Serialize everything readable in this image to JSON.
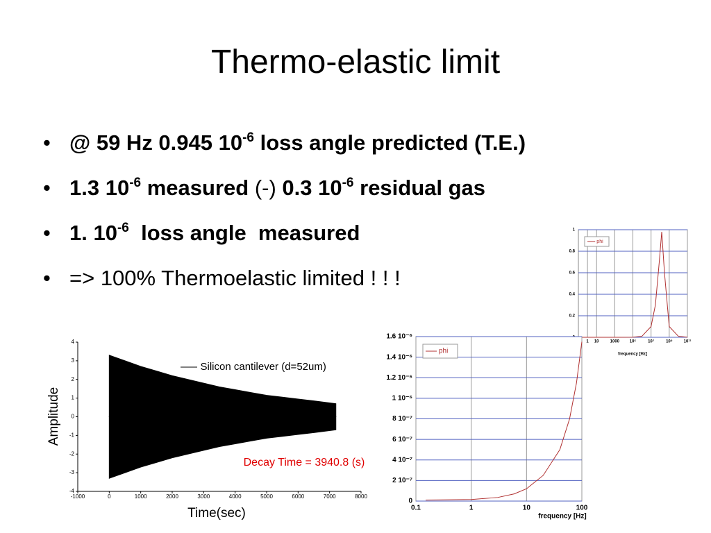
{
  "title": "Thermo-elastic limit",
  "bullets": [
    [
      {
        "text": "@ 59 Hz 0.945 10",
        "bold": true
      },
      {
        "text": "-6",
        "bold": true,
        "sup": true
      },
      {
        "text": " loss angle predicted (T.E.)",
        "bold": true
      }
    ],
    [
      {
        "text": "1.3 10",
        "bold": true
      },
      {
        "text": "-6",
        "bold": true,
        "sup": true
      },
      {
        "text": " measured ",
        "bold": true
      },
      {
        "text": "(-) ",
        "bold": false
      },
      {
        "text": "0.3 10",
        "bold": true
      },
      {
        "text": "-6",
        "bold": true,
        "sup": true
      },
      {
        "text": " residual gas",
        "bold": true
      }
    ],
    [
      {
        "text": "1. 10",
        "bold": true
      },
      {
        "text": "-6",
        "bold": true,
        "sup": true
      },
      {
        "text": "  loss angle  measured",
        "bold": true
      }
    ],
    [
      {
        "text": "=> 100% Thermoelastic limited ! ! !",
        "bold": false
      }
    ]
  ],
  "chart_data": [
    {
      "type": "area",
      "xlabel": "Time(sec)",
      "ylabel": "Amplitude",
      "x": [
        0,
        500,
        1000,
        1500,
        2000,
        2500,
        3000,
        3500,
        4000,
        4500,
        5000,
        5500,
        6000,
        6500,
        7200
      ],
      "series": [
        {
          "name": "Silicon cantilever (d=52um)",
          "color": "#000000",
          "values": [
            3.3,
            3.0,
            2.7,
            2.45,
            2.2,
            2.0,
            1.8,
            1.6,
            1.45,
            1.3,
            1.15,
            1.05,
            0.95,
            0.85,
            0.7
          ],
          "lower": [
            -3.3,
            -3.0,
            -2.7,
            -2.45,
            -2.2,
            -2.0,
            -1.8,
            -1.6,
            -1.45,
            -1.3,
            -1.15,
            -1.05,
            -0.95,
            -0.85,
            -0.7
          ]
        }
      ],
      "annotation": {
        "text": "Decay Time = 3940.8 (s)",
        "color": "#e00000"
      },
      "xlim": [
        -1000,
        8000
      ],
      "xticks": [
        -1000,
        0,
        1000,
        2000,
        3000,
        4000,
        5000,
        6000,
        7000,
        8000
      ],
      "ylim": [
        -4,
        4
      ],
      "yticks": [
        -4,
        -3,
        -2,
        -1,
        0,
        1,
        2,
        3,
        4
      ],
      "grid": false,
      "legend": "upper right"
    },
    {
      "type": "line",
      "xlabel": "frequency [Hz]",
      "xscale": "log",
      "x": [
        0.1,
        1000,
        100000,
        1000000,
        10000000,
        30000000,
        80000000,
        150000000,
        300000000,
        1000000000,
        10000000000,
        100000000000
      ],
      "series": [
        {
          "name": "phi",
          "color": "#b03030",
          "values": [
            0,
            0,
            0.001,
            0.01,
            0.1,
            0.3,
            0.7,
            0.98,
            0.6,
            0.1,
            0.01,
            0.001
          ]
        }
      ],
      "xlim": [
        0.1,
        100000000000
      ],
      "xticks": [
        1,
        10,
        1000,
        {
          "value": 100000,
          "label": "10⁵"
        },
        {
          "value": 10000000,
          "label": "10⁷"
        },
        {
          "value": 1000000000,
          "label": "10⁹"
        },
        {
          "value": 100000000000,
          "label": "10¹¹"
        }
      ],
      "ylim": [
        0,
        1
      ],
      "yticks": [
        0,
        0.2,
        0.4,
        0.6,
        0.8,
        1
      ],
      "grid": true,
      "grid_color": "#5060c0",
      "legend": "upper left"
    },
    {
      "type": "line",
      "xlabel": "frequency [Hz]",
      "xscale": "log",
      "x": [
        0.15,
        1,
        3,
        6,
        10,
        20,
        40,
        60,
        80,
        100
      ],
      "series": [
        {
          "name": "phi",
          "color": "#b03030",
          "values": [
            1e-08,
            1.5e-08,
            3.5e-08,
            7e-08,
            1.2e-07,
            2.5e-07,
            5e-07,
            8e-07,
            1.15e-06,
            1.55e-06
          ]
        }
      ],
      "xlim": [
        0.1,
        100
      ],
      "xticks": [
        0.1,
        1,
        10,
        100
      ],
      "ylim": [
        0,
        1.6e-06
      ],
      "yticks": [
        0,
        {
          "value": 2e-07,
          "label": "2 10⁻⁷"
        },
        {
          "value": 4e-07,
          "label": "4 10⁻⁷"
        },
        {
          "value": 6e-07,
          "label": "6 10⁻⁷"
        },
        {
          "value": 8e-07,
          "label": "8 10⁻⁷"
        },
        {
          "value": 1e-06,
          "label": "1 10⁻⁶"
        },
        {
          "value": 1.2e-06,
          "label": "1.2 10⁻⁶"
        },
        {
          "value": 1.4e-06,
          "label": "1.4 10⁻⁶"
        },
        {
          "value": 1.6e-06,
          "label": "1.6 10⁻⁶"
        }
      ],
      "grid": true,
      "grid_color": "#5060c0",
      "legend": "upper left"
    }
  ]
}
